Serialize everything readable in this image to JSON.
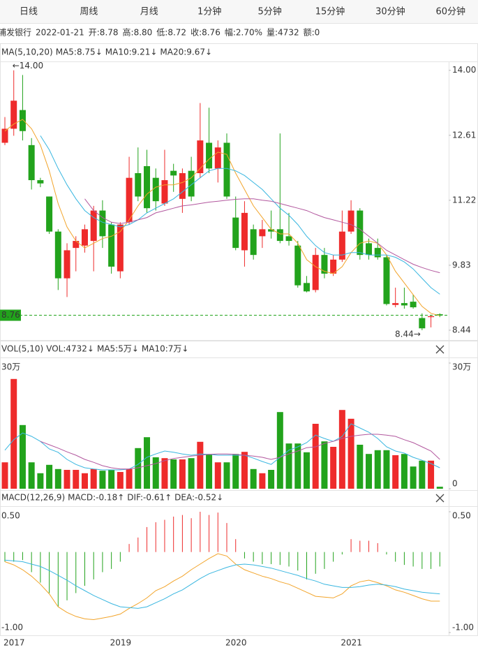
{
  "tabs": {
    "items": [
      "日线",
      "周线",
      "月线",
      "1分钟",
      "5分钟",
      "15分钟",
      "30分钟",
      "60分钟"
    ],
    "active": 2,
    "active_color": "#3a6ee8"
  },
  "info": [
    {
      "text": "浦发银行",
      "color": "#333333"
    },
    {
      "text": "2022-01-21",
      "color": "#555555"
    },
    {
      "text": "开:8.78",
      "color": "#e8282b"
    },
    {
      "text": "高:8.80",
      "color": "#e8282b"
    },
    {
      "text": "低:8.72",
      "color": "#e8282b"
    },
    {
      "text": "收:8.76",
      "color": "#e8282b"
    },
    {
      "text": "幅:2.70%",
      "color": "#e8282b"
    },
    {
      "text": "量:4732",
      "color": "#333333"
    },
    {
      "text": "额:0",
      "color": "#333333"
    }
  ],
  "chart_data": [
    {
      "type": "candlestick",
      "legend_title": "MA(5,10,20)",
      "up_color": "#ee2b2b",
      "down_color": "#22a31c",
      "open": [
        12.45,
        12.75,
        13.15,
        12.4,
        11.65,
        11.3,
        10.55,
        9.55,
        10.2,
        10.25,
        10.35,
        11.0,
        10.7,
        9.7,
        10.75,
        11.8,
        11.95,
        11.7,
        11.15,
        11.85,
        11.25,
        11.85,
        11.8,
        12.45,
        11.9,
        12.45,
        10.85,
        10.15,
        10.6,
        10.45,
        10.6,
        10.6,
        10.45,
        10.25,
        9.45,
        9.3,
        10.05,
        9.65,
        9.95,
        10.55,
        11.0,
        10.3,
        10.2,
        10.0,
        8.98,
        9.02,
        9.05,
        8.7,
        8.72,
        8.78
      ],
      "high": [
        13.0,
        14.0,
        13.9,
        12.55,
        11.7,
        11.3,
        10.6,
        10.3,
        10.45,
        10.7,
        11.1,
        11.22,
        10.75,
        10.75,
        12.15,
        12.35,
        12.3,
        11.9,
        12.3,
        12.0,
        11.9,
        12.15,
        13.3,
        13.2,
        12.5,
        12.65,
        11.3,
        11.2,
        10.7,
        10.8,
        11.0,
        12.65,
        10.95,
        10.35,
        9.6,
        10.2,
        10.2,
        10.05,
        11.0,
        11.22,
        11.05,
        10.4,
        10.4,
        10.05,
        9.35,
        9.35,
        9.2,
        8.8,
        8.76,
        8.8
      ],
      "low": [
        12.4,
        12.6,
        12.5,
        11.45,
        11.5,
        10.5,
        9.3,
        9.15,
        9.7,
        10.1,
        9.7,
        10.2,
        9.65,
        9.55,
        10.7,
        11.2,
        10.95,
        11.0,
        11.1,
        11.4,
        10.95,
        11.2,
        11.7,
        11.8,
        11.6,
        11.25,
        10.15,
        9.8,
        9.95,
        10.2,
        10.4,
        10.3,
        10.25,
        9.35,
        9.25,
        9.25,
        9.55,
        9.6,
        9.9,
        10.5,
        9.95,
        9.95,
        9.95,
        8.97,
        8.93,
        8.9,
        8.9,
        8.44,
        8.5,
        8.72
      ],
      "close": [
        12.75,
        13.35,
        12.7,
        11.65,
        11.58,
        10.55,
        9.55,
        10.15,
        10.35,
        10.6,
        11.0,
        10.45,
        9.8,
        10.7,
        11.7,
        11.3,
        11.05,
        11.2,
        11.65,
        11.75,
        11.8,
        11.3,
        12.5,
        11.9,
        12.35,
        11.3,
        10.2,
        10.95,
        10.05,
        10.6,
        10.55,
        10.35,
        10.35,
        9.4,
        9.27,
        10.05,
        9.65,
        9.95,
        10.55,
        11.0,
        10.05,
        10.05,
        10.0,
        9.0,
        9.02,
        8.97,
        8.93,
        8.48,
        8.74,
        8.76
      ],
      "series": [
        {
          "name": "MA5:8.75↓",
          "color": "#f2a42a",
          "values": [
            12.7,
            12.85,
            12.95,
            12.75,
            12.4,
            11.85,
            11.15,
            10.65,
            10.35,
            10.2,
            10.3,
            10.4,
            10.45,
            10.55,
            10.8,
            11.1,
            11.35,
            11.5,
            11.55,
            11.55,
            11.6,
            11.7,
            11.9,
            12.1,
            12.25,
            12.2,
            11.8,
            11.45,
            11.1,
            10.85,
            10.6,
            10.5,
            10.5,
            10.3,
            9.95,
            9.8,
            9.7,
            9.65,
            9.8,
            10.1,
            10.3,
            10.35,
            10.3,
            10.05,
            9.7,
            9.45,
            9.2,
            8.95,
            8.8,
            8.75
          ]
        },
        {
          "name": "MA10:9.21↓",
          "color": "#38b6e0",
          "values": [
            null,
            null,
            null,
            null,
            12.6,
            12.3,
            11.9,
            11.55,
            11.25,
            11.0,
            10.85,
            10.75,
            10.7,
            10.65,
            10.7,
            10.8,
            10.95,
            11.05,
            11.15,
            11.25,
            11.4,
            11.55,
            11.7,
            11.85,
            11.9,
            11.9,
            11.85,
            11.75,
            11.6,
            11.45,
            11.25,
            11.05,
            10.9,
            10.7,
            10.45,
            10.25,
            10.1,
            10.05,
            10.05,
            10.1,
            10.1,
            10.05,
            10.05,
            10.05,
            10.0,
            9.9,
            9.75,
            9.55,
            9.35,
            9.21
          ]
        },
        {
          "name": "MA20:9.67↓",
          "color": "#b2579e",
          "values": [
            null,
            null,
            null,
            null,
            null,
            null,
            null,
            null,
            null,
            11.25,
            11.0,
            10.85,
            10.75,
            10.72,
            10.75,
            10.8,
            10.85,
            10.95,
            11.0,
            11.05,
            11.1,
            11.12,
            11.15,
            11.18,
            11.2,
            11.22,
            11.24,
            11.25,
            11.25,
            11.22,
            11.2,
            11.15,
            11.1,
            11.05,
            11.0,
            10.92,
            10.85,
            10.8,
            10.75,
            10.7,
            10.6,
            10.45,
            10.3,
            10.15,
            10.05,
            9.95,
            9.85,
            9.78,
            9.72,
            9.67
          ]
        }
      ],
      "ylim": [
        8.23,
        14.19
      ],
      "yticks": [
        {
          "value": 14.0,
          "label": "14.00"
        },
        12.61,
        11.22,
        9.83,
        8.44
      ],
      "annotations": [
        {
          "text": "←14.00",
          "value": 14.0
        },
        {
          "text": "8.44→",
          "value": 8.44
        }
      ],
      "last_price": {
        "value": 8.76,
        "label": "8.76",
        "color": "#22a31c"
      }
    },
    {
      "type": "volume",
      "legend_title": "VOL(5,10)",
      "value_legend": {
        "text": "VOL:4732↓",
        "color": "#f2a42a"
      },
      "values": [
        6.3,
        26.2,
        15.2,
        6.3,
        3.7,
        5.7,
        4.7,
        4.5,
        4.5,
        3.7,
        4.7,
        4.3,
        4.5,
        4.0,
        4.7,
        9.7,
        12.3,
        7.5,
        7.3,
        7.0,
        7.0,
        7.3,
        11.2,
        8.2,
        6.3,
        6.3,
        8.3,
        8.8,
        4.7,
        3.7,
        4.5,
        18.3,
        10.8,
        10.8,
        8.7,
        15.5,
        11.3,
        10.0,
        18.8,
        16.7,
        10.5,
        8.3,
        9.2,
        9.2,
        8.0,
        8.3,
        5.3,
        6.7,
        6.7,
        0.47
      ],
      "series": [
        {
          "name": "MA5:5万↓",
          "color": "#38b6e0",
          "values": [
            9.2,
            11.7,
            13.3,
            12.5,
            11.3,
            9.5,
            8.7,
            7.0,
            5.8,
            5.0,
            4.7,
            4.5,
            4.5,
            4.5,
            4.7,
            5.8,
            7.5,
            8.3,
            9.0,
            8.7,
            8.3,
            8.0,
            8.3,
            8.2,
            8.0,
            8.0,
            8.0,
            8.0,
            7.3,
            6.5,
            5.8,
            7.5,
            9.2,
            10.0,
            11.0,
            12.8,
            12.0,
            11.3,
            12.5,
            15.5,
            14.5,
            13.5,
            12.0,
            10.0,
            9.0,
            8.5,
            7.5,
            6.8,
            6.0,
            5.0
          ]
        },
        {
          "name": "MA10:7万↓",
          "color": "#b2579e",
          "values": [
            null,
            null,
            null,
            null,
            11.3,
            10.5,
            9.7,
            8.8,
            8.0,
            7.0,
            6.3,
            5.5,
            5.0,
            4.7,
            4.7,
            5.0,
            5.5,
            6.0,
            6.7,
            7.2,
            7.5,
            7.8,
            8.0,
            8.2,
            8.3,
            8.3,
            8.2,
            8.0,
            7.8,
            7.5,
            7.0,
            7.5,
            8.3,
            9.0,
            9.8,
            10.0,
            10.8,
            11.3,
            12.0,
            12.5,
            12.8,
            13.0,
            13.0,
            12.8,
            12.5,
            11.7,
            11.0,
            10.0,
            9.0,
            7.0
          ]
        }
      ],
      "ylim": [
        0,
        30
      ],
      "yticks": [
        {
          "value": 30,
          "label": "30万"
        },
        0
      ]
    },
    {
      "type": "macd",
      "legend_title": "MACD(12,26,9)",
      "value_legend": {
        "text": "MACD:-0.18↑",
        "color": "#b2579e"
      },
      "up_color": "#ee2b2b",
      "down_color": "#22a31c",
      "categories": [
        "2017",
        null,
        null,
        null,
        null,
        null,
        null,
        null,
        null,
        null,
        null,
        null,
        "2019",
        null,
        null,
        null,
        null,
        null,
        null,
        null,
        null,
        null,
        null,
        null,
        null,
        "2020",
        null,
        null,
        null,
        null,
        null,
        null,
        null,
        null,
        null,
        null,
        null,
        null,
        "2021",
        null,
        null,
        null,
        null,
        null,
        null,
        null,
        null,
        null,
        null,
        null
      ],
      "values": [
        -0.12,
        -0.12,
        -0.1,
        -0.25,
        -0.38,
        -0.51,
        -0.68,
        -0.6,
        -0.51,
        -0.42,
        -0.34,
        -0.25,
        -0.21,
        -0.12,
        0.1,
        0.18,
        0.31,
        0.37,
        0.4,
        0.44,
        0.46,
        0.42,
        0.5,
        0.46,
        0.49,
        0.36,
        0.16,
        -0.08,
        -0.12,
        -0.15,
        -0.15,
        -0.16,
        -0.18,
        -0.23,
        -0.34,
        -0.27,
        -0.21,
        -0.12,
        -0.03,
        0.16,
        0.14,
        0.14,
        0.11,
        -0.03,
        -0.12,
        -0.16,
        -0.18,
        -0.21,
        -0.21,
        -0.18
      ],
      "series": [
        {
          "name": "DIF:-0.61↑",
          "color": "#f2a42a",
          "values": [
            -0.12,
            -0.16,
            -0.22,
            -0.3,
            -0.4,
            -0.52,
            -0.68,
            -0.75,
            -0.8,
            -0.83,
            -0.84,
            -0.82,
            -0.8,
            -0.77,
            -0.7,
            -0.64,
            -0.57,
            -0.48,
            -0.43,
            -0.36,
            -0.3,
            -0.22,
            -0.15,
            -0.08,
            -0.02,
            -0.05,
            -0.15,
            -0.22,
            -0.26,
            -0.3,
            -0.33,
            -0.37,
            -0.4,
            -0.45,
            -0.5,
            -0.55,
            -0.56,
            -0.57,
            -0.52,
            -0.42,
            -0.37,
            -0.35,
            -0.38,
            -0.42,
            -0.47,
            -0.5,
            -0.54,
            -0.58,
            -0.61,
            -0.61
          ]
        },
        {
          "name": "DEA:-0.52↓",
          "color": "#38b6e0",
          "values": [
            -0.1,
            -0.11,
            -0.12,
            -0.15,
            -0.18,
            -0.23,
            -0.29,
            -0.35,
            -0.42,
            -0.48,
            -0.54,
            -0.59,
            -0.64,
            -0.68,
            -0.69,
            -0.7,
            -0.68,
            -0.63,
            -0.58,
            -0.52,
            -0.47,
            -0.4,
            -0.33,
            -0.27,
            -0.23,
            -0.19,
            -0.16,
            -0.15,
            -0.16,
            -0.18,
            -0.2,
            -0.23,
            -0.26,
            -0.29,
            -0.33,
            -0.36,
            -0.4,
            -0.42,
            -0.44,
            -0.44,
            -0.43,
            -0.41,
            -0.4,
            -0.41,
            -0.43,
            -0.46,
            -0.48,
            -0.5,
            -0.51,
            -0.52
          ]
        }
      ],
      "ylim": [
        -1.0,
        0.5
      ],
      "yticks": [
        {
          "value": 0.5,
          "label": "0.50"
        },
        {
          "value": -1.0,
          "label": "-1.00"
        }
      ]
    }
  ]
}
